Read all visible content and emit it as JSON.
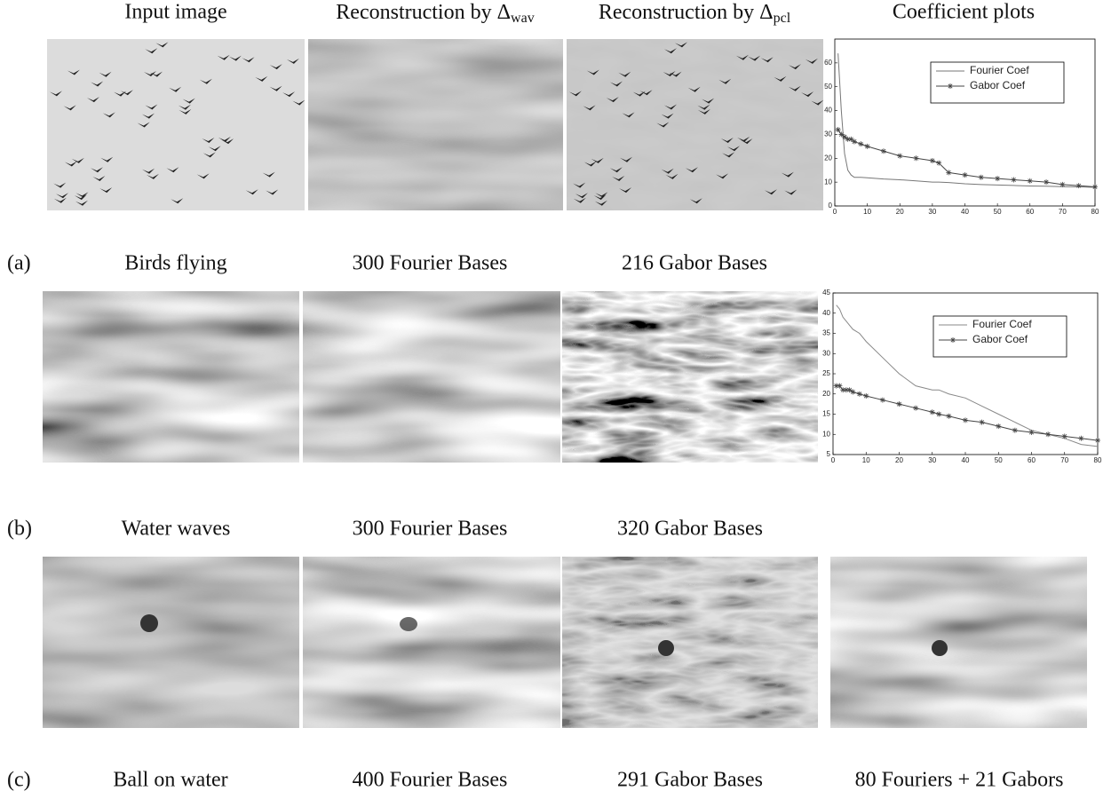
{
  "header": [
    {
      "text": "Input image"
    },
    {
      "text": "Reconstruction by Δ",
      "sub": "wav"
    },
    {
      "text": "Reconstruction by Δ",
      "sub": "pcl"
    },
    {
      "text": "Coefficient plots"
    }
  ],
  "rows": [
    {
      "tag": "(a)",
      "captions": [
        "Birds flying",
        "300 Fourier Bases",
        "216 Gabor Bases"
      ]
    },
    {
      "tag": "(b)",
      "captions": [
        "Water waves",
        "300 Fourier Bases",
        "320 Gabor Bases"
      ]
    },
    {
      "tag": "(c)",
      "captions": [
        "Ball on water",
        "400 Fourier Bases",
        "291 Gabor Bases",
        "80 Fouriers + 21 Gabors"
      ]
    }
  ],
  "chart_data": [
    {
      "type": "line",
      "x": [
        1,
        2,
        3,
        4,
        5,
        6,
        8,
        10,
        15,
        20,
        25,
        30,
        32,
        35,
        40,
        45,
        50,
        55,
        60,
        65,
        70,
        75,
        80
      ],
      "series": [
        {
          "name": "Fourier Coef",
          "color": "#777777",
          "marker": "none",
          "values": [
            64,
            40,
            22,
            15,
            13,
            12,
            12,
            11.8,
            11.3,
            11,
            10.5,
            10,
            10,
            9.8,
            9.3,
            9,
            8.8,
            8.6,
            8.4,
            8.3,
            8.1,
            8,
            7.8
          ]
        },
        {
          "name": "Gabor Coef",
          "color": "#444444",
          "marker": "star",
          "values": [
            32,
            30,
            29,
            28,
            28,
            27,
            26,
            25,
            23,
            21,
            20,
            19,
            18,
            14,
            13,
            12,
            11.5,
            11,
            10.5,
            10,
            9,
            8.5,
            8
          ]
        }
      ],
      "xlim": [
        0,
        80
      ],
      "xticks": [
        0,
        10,
        20,
        30,
        40,
        50,
        60,
        70,
        80
      ],
      "ylim": [
        0,
        70
      ],
      "yticks": [
        0,
        10,
        20,
        30,
        40,
        50,
        60
      ],
      "legend": "upper-right"
    },
    {
      "type": "line",
      "x": [
        1,
        2,
        3,
        4,
        5,
        6,
        8,
        10,
        15,
        20,
        25,
        30,
        32,
        35,
        40,
        45,
        50,
        55,
        60,
        65,
        70,
        75,
        80
      ],
      "series": [
        {
          "name": "Fourier Coef",
          "color": "#888888",
          "marker": "none",
          "values": [
            42,
            41,
            39,
            38,
            37,
            36,
            35,
            33,
            29,
            25,
            22,
            21,
            21,
            20,
            19,
            17,
            15,
            13,
            11,
            10,
            9,
            7.5,
            7
          ]
        },
        {
          "name": "Gabor Coef",
          "color": "#444444",
          "marker": "star",
          "values": [
            22,
            22,
            21,
            21,
            21,
            20.5,
            20,
            19.5,
            18.5,
            17.5,
            16.5,
            15.5,
            15,
            14.5,
            13.5,
            13,
            12,
            11,
            10.5,
            10,
            9.5,
            9,
            8.5
          ]
        }
      ],
      "xlim": [
        0,
        80
      ],
      "xticks": [
        0,
        10,
        20,
        30,
        40,
        50,
        60,
        70,
        80
      ],
      "ylim": [
        5,
        45
      ],
      "yticks": [
        5,
        10,
        15,
        20,
        25,
        30,
        35,
        40,
        45
      ],
      "legend": "upper-right"
    }
  ]
}
